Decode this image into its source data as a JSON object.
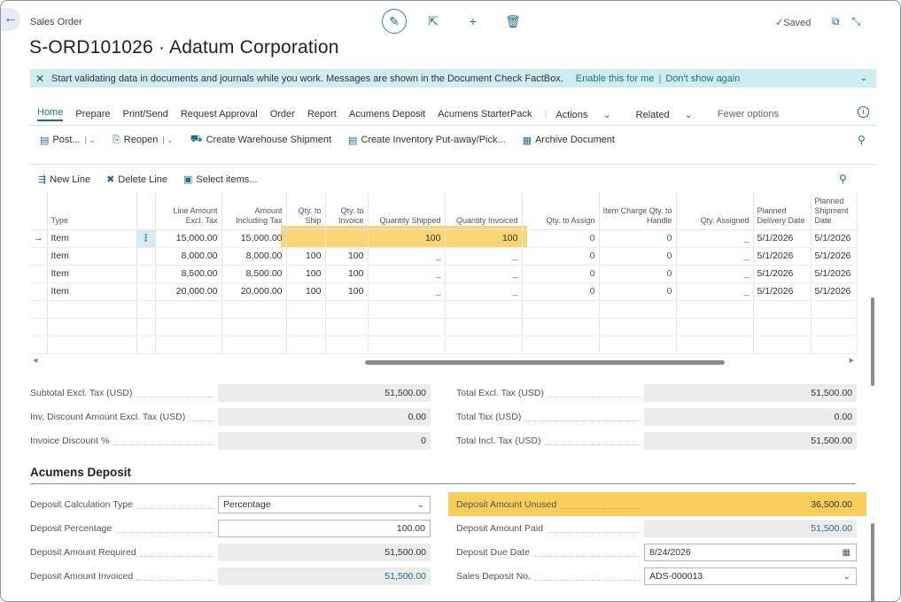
{
  "header": {
    "page_type": "Sales Order",
    "title": "S-ORD101026 · Adatum Corporation",
    "saved_label": "Saved"
  },
  "notification": {
    "message": "Start validating data in documents and journals while you work. Messages are shown in the Document Check FactBox.",
    "enable_link": "Enable this for me",
    "separator": "|",
    "dismiss_link": "Don't show again"
  },
  "tabs": [
    "Home",
    "Prepare",
    "Print/Send",
    "Request Approval",
    "Order",
    "Report",
    "Acumens Deposit",
    "Acumens StarterPack",
    "Actions",
    "Related",
    "Fewer options"
  ],
  "actions": {
    "post": "Post...",
    "reopen": "Reopen",
    "create_ws": "Create Warehouse Shipment",
    "create_inv": "Create Inventory Put-away/Pick...",
    "archive": "Archive Document"
  },
  "lines_actions": {
    "new_line": "New Line",
    "delete_line": "Delete Line",
    "select_items": "Select items..."
  },
  "grid": {
    "headers": {
      "type": "Type",
      "line_amount": "Line Amount Excl. Tax",
      "amount_incl": "Amount Including Tax",
      "qty_ship": "Qty. to Ship",
      "qty_invoice": "Qty. to Invoice",
      "qty_shipped": "Quantity Shipped",
      "qty_invoiced": "Quantity Invoiced",
      "qty_assign": "Qty. to Assign",
      "item_charge": "Item Charge Qty. to Handle",
      "qty_assigned": "Qty. Assigned",
      "planned_delivery": "Planned Delivery Date",
      "planned_shipment": "Planned Shipment Date"
    },
    "rows": [
      {
        "type": "Item",
        "line_amount": "15,000.00",
        "amount_incl": "15,000.00",
        "qty_ship": "",
        "qty_invoice": "",
        "qty_shipped": "100",
        "qty_invoiced": "100",
        "qty_assign": "0",
        "item_charge": "0",
        "qty_assigned": "_",
        "delivery": "5/1/2026",
        "shipment": "5/1/2026"
      },
      {
        "type": "Item",
        "line_amount": "8,000.00",
        "amount_incl": "8,000.00",
        "qty_ship": "100",
        "qty_invoice": "100",
        "qty_shipped": "_",
        "qty_invoiced": "_",
        "qty_assign": "0",
        "item_charge": "0",
        "qty_assigned": "_",
        "delivery": "5/1/2026",
        "shipment": "5/1/2026"
      },
      {
        "type": "Item",
        "line_amount": "8,500.00",
        "amount_incl": "8,500.00",
        "qty_ship": "100",
        "qty_invoice": "100",
        "qty_shipped": "_",
        "qty_invoiced": "_",
        "qty_assign": "0",
        "item_charge": "0",
        "qty_assigned": "_",
        "delivery": "5/1/2026",
        "shipment": "5/1/2026"
      },
      {
        "type": "Item",
        "line_amount": "20,000.00",
        "amount_incl": "20,000.00",
        "qty_ship": "100",
        "qty_invoice": "100",
        "qty_shipped": "_",
        "qty_invoiced": "_",
        "qty_assign": "0",
        "item_charge": "0",
        "qty_assigned": "_",
        "delivery": "5/1/2026",
        "shipment": "5/1/2026"
      }
    ]
  },
  "totals": {
    "subtotal_label": "Subtotal Excl. Tax (USD)",
    "subtotal": "51,500.00",
    "inv_disc_label": "Inv. Discount Amount Excl. Tax (USD)",
    "inv_disc": "0.00",
    "inv_disc_pct_label": "Invoice Discount %",
    "inv_disc_pct": "0",
    "total_excl_label": "Total Excl. Tax (USD)",
    "total_excl": "51,500.00",
    "total_tax_label": "Total Tax (USD)",
    "total_tax": "0.00",
    "total_incl_label": "Total Incl. Tax (USD)",
    "total_incl": "51,500.00"
  },
  "deposit": {
    "section_title": "Acumens Deposit",
    "calc_type_label": "Deposit Calculation Type",
    "calc_type": "Percentage",
    "percentage_label": "Deposit Percentage",
    "percentage": "100.00",
    "required_label": "Deposit Amount Required",
    "required": "51,500.00",
    "invoiced_label": "Deposit Amount Invoiced",
    "invoiced": "51,500.00",
    "unused_label": "Deposit Amount Unused",
    "unused": "36,500.00",
    "paid_label": "Deposit Amount Paid",
    "paid": "51,500.00",
    "due_date_label": "Deposit Due Date",
    "due_date": "8/24/2026",
    "sales_no_label": "Sales Deposit No.",
    "sales_no": "ADS-000013"
  },
  "colors": {
    "accent": "#1b6f8e",
    "highlight": "#f8cf5c",
    "notification_bg": "#cfecee"
  }
}
